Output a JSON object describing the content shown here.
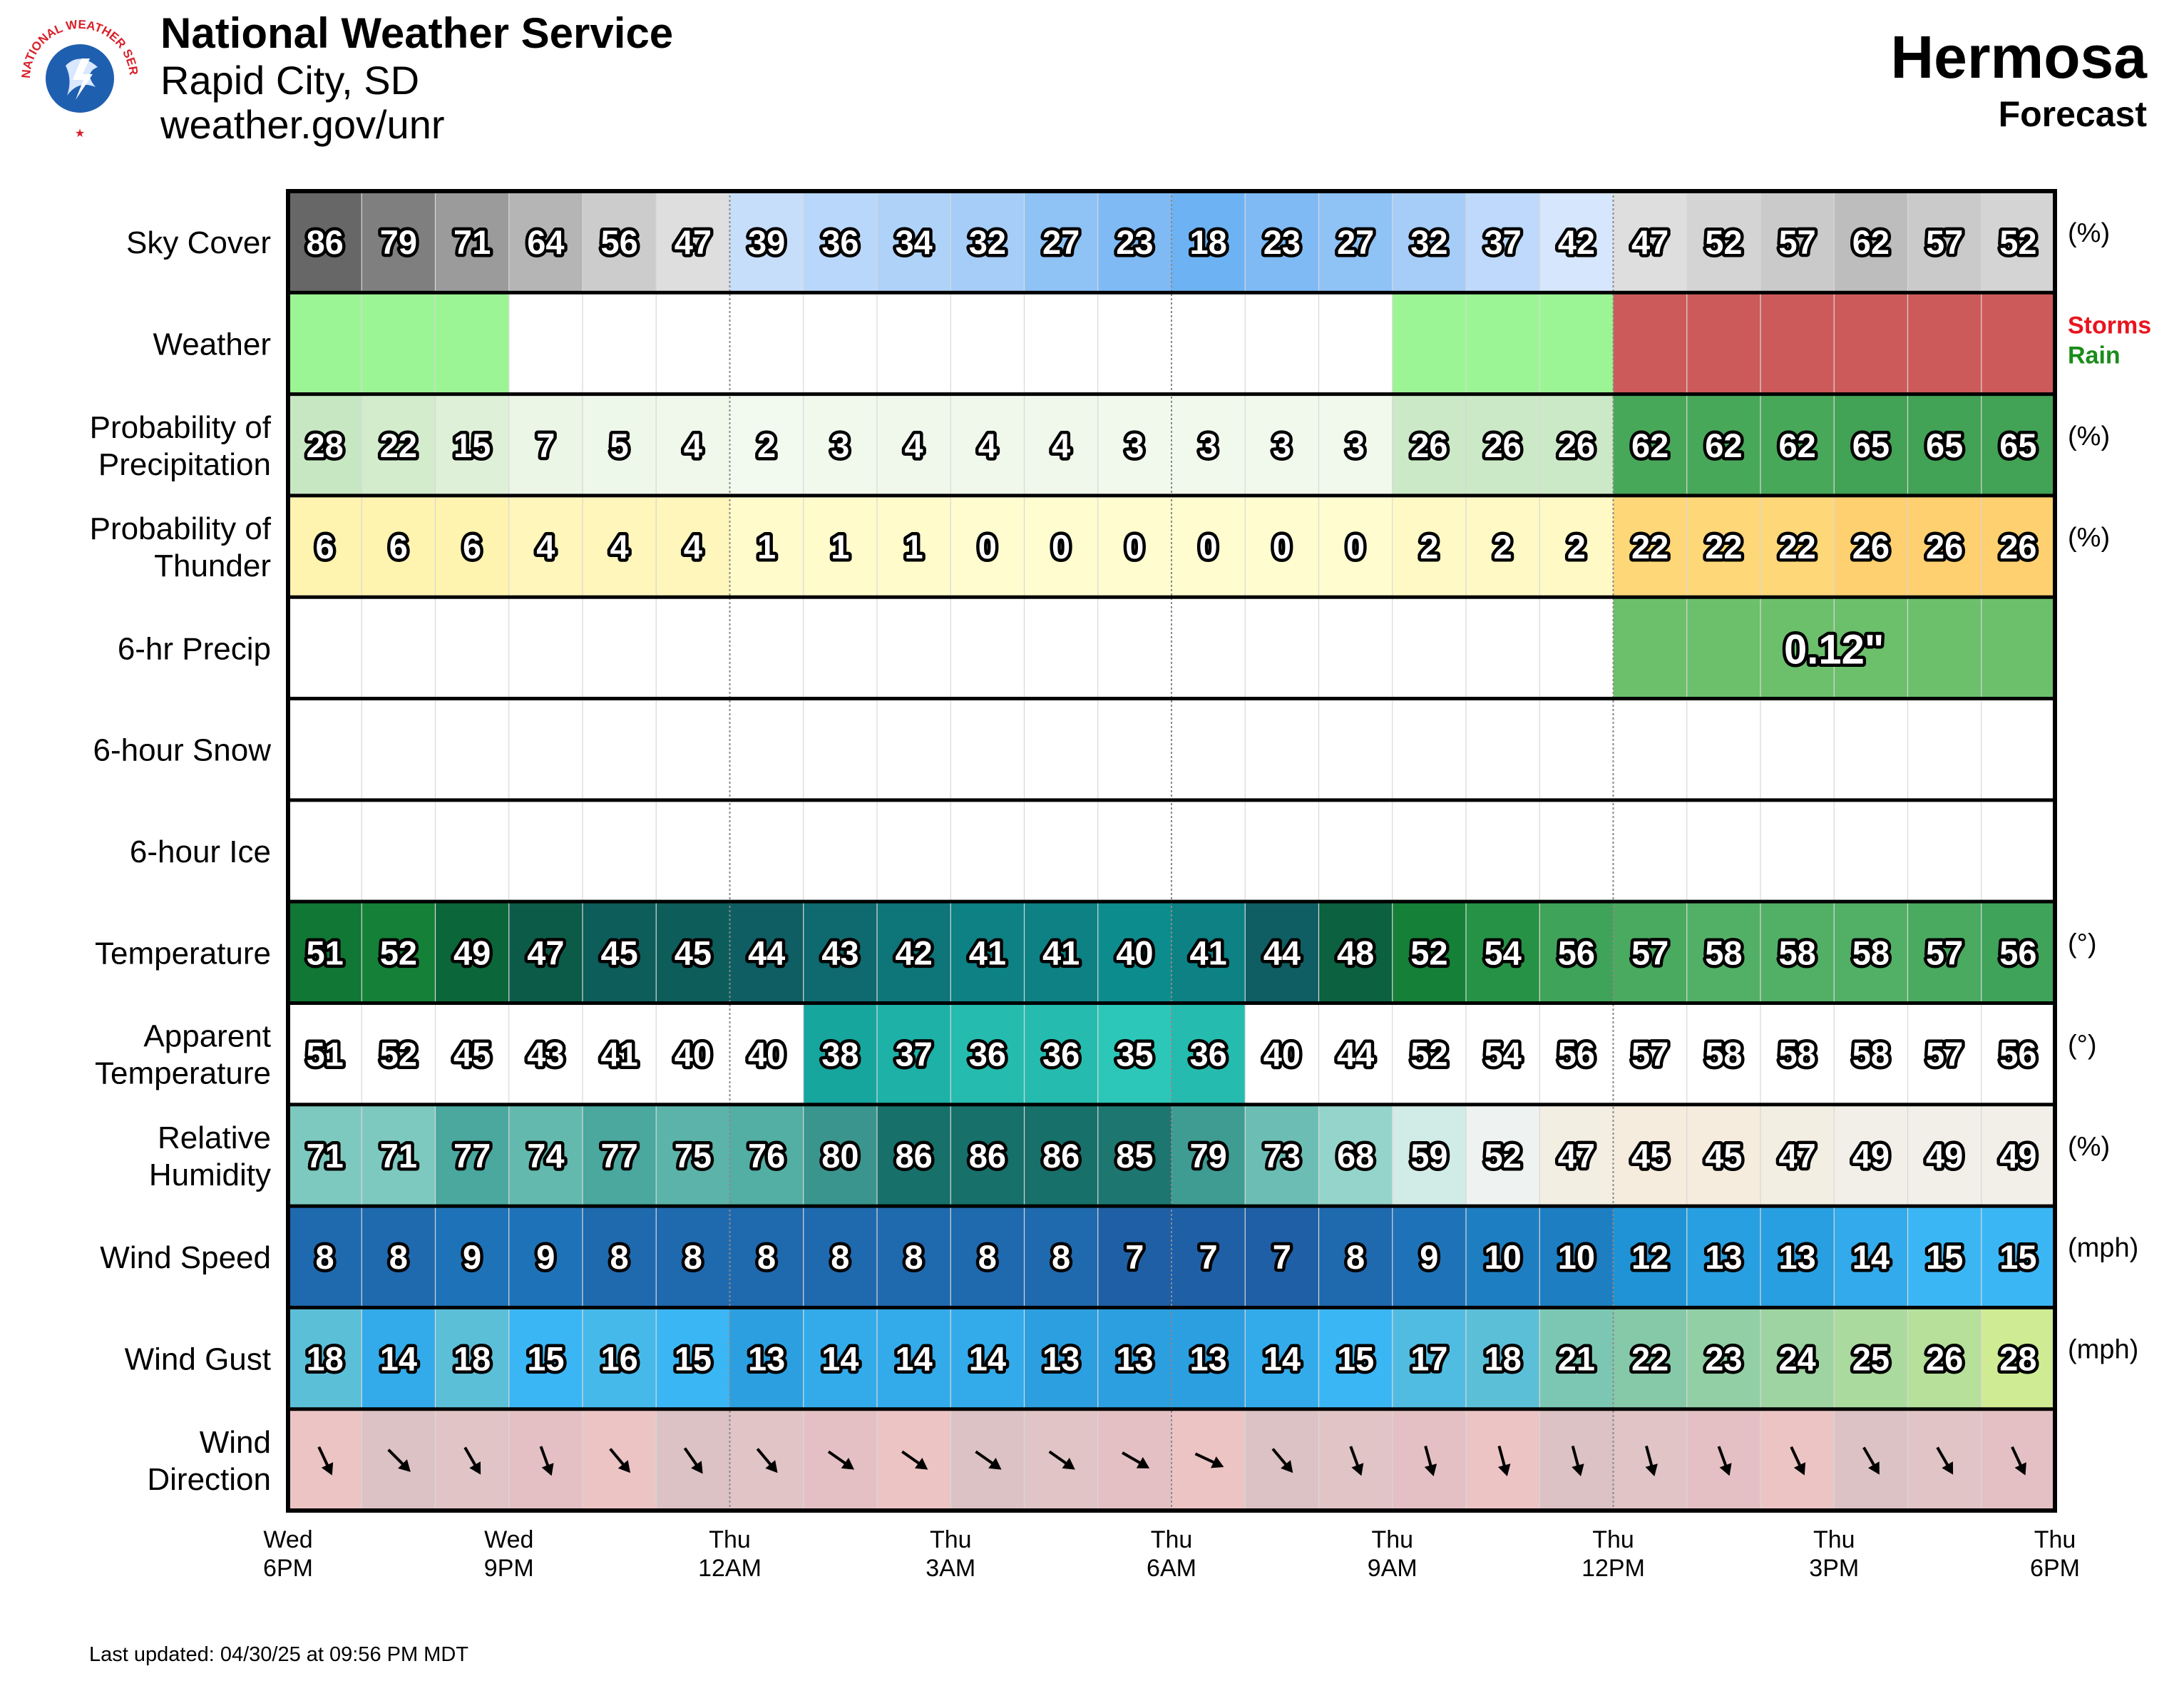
{
  "header": {
    "office": "National Weather Service",
    "location": "Rapid City, SD",
    "url": "weather.gov/unr",
    "logo_text": "NATIONAL WEATHER SERVICE",
    "title": "Hermosa",
    "subtitle": "Forecast"
  },
  "footer": {
    "last_updated": "Last updated: 04/30/25 at 09:56 PM MDT"
  },
  "chart_data": {
    "type": "table",
    "time_labels": [
      {
        "day": "Wed",
        "time": "6PM"
      },
      {
        "day": "Wed",
        "time": "9PM"
      },
      {
        "day": "Thu",
        "time": "12AM"
      },
      {
        "day": "Thu",
        "time": "3AM"
      },
      {
        "day": "Thu",
        "time": "6AM"
      },
      {
        "day": "Thu",
        "time": "9AM"
      },
      {
        "day": "Thu",
        "time": "12PM"
      },
      {
        "day": "Thu",
        "time": "3PM"
      },
      {
        "day": "Thu",
        "time": "6PM"
      }
    ],
    "hours_per_column": 1,
    "rows": [
      {
        "key": "sky",
        "label": [
          "Sky Cover"
        ],
        "unit": "(%)",
        "values": [
          86,
          79,
          71,
          64,
          56,
          47,
          39,
          36,
          34,
          32,
          27,
          23,
          18,
          23,
          27,
          32,
          37,
          42,
          47,
          52,
          57,
          62,
          57,
          52
        ]
      },
      {
        "key": "weather",
        "label": [
          "Weather"
        ],
        "legend": [
          {
            "text": "Storms",
            "color": "#e8141e"
          },
          {
            "text": "Rain",
            "color": "#1a8c1a"
          }
        ],
        "values": [
          "Rain",
          "Rain",
          "Rain",
          "",
          "",
          "",
          "",
          "",
          "",
          "",
          "",
          "",
          "",
          "",
          "",
          "Rain",
          "Rain",
          "Rain",
          "Storms",
          "Storms",
          "Storms",
          "Storms",
          "Storms",
          "Storms"
        ]
      },
      {
        "key": "pop",
        "label": [
          "Probability of",
          "Precipitation"
        ],
        "unit": "(%)",
        "values": [
          28,
          22,
          15,
          7,
          5,
          4,
          2,
          3,
          4,
          4,
          4,
          3,
          3,
          3,
          3,
          26,
          26,
          26,
          62,
          62,
          62,
          65,
          65,
          65
        ]
      },
      {
        "key": "thunder",
        "label": [
          "Probability of",
          "Thunder"
        ],
        "unit": "(%)",
        "values": [
          6,
          6,
          6,
          4,
          4,
          4,
          1,
          1,
          1,
          0,
          0,
          0,
          0,
          0,
          0,
          2,
          2,
          2,
          22,
          22,
          22,
          26,
          26,
          26
        ]
      },
      {
        "key": "qpf",
        "label": [
          "6-hr Precip"
        ],
        "unit": "",
        "periods": [
          {
            "start": 0,
            "end": 6,
            "value": ""
          },
          {
            "start": 6,
            "end": 12,
            "value": ""
          },
          {
            "start": 12,
            "end": 18,
            "value": ""
          },
          {
            "start": 18,
            "end": 24,
            "value": "0.12\""
          }
        ]
      },
      {
        "key": "snow",
        "label": [
          "6-hour Snow"
        ],
        "unit": "",
        "periods": []
      },
      {
        "key": "ice",
        "label": [
          "6-hour Ice"
        ],
        "unit": "",
        "periods": []
      },
      {
        "key": "temp",
        "label": [
          "Temperature"
        ],
        "unit": "(°)",
        "values": [
          51,
          52,
          49,
          47,
          45,
          45,
          44,
          43,
          42,
          41,
          41,
          40,
          41,
          44,
          48,
          52,
          54,
          56,
          57,
          58,
          58,
          58,
          57,
          56
        ]
      },
      {
        "key": "apparent",
        "label": [
          "Apparent",
          "Temperature"
        ],
        "unit": "(°)",
        "values": [
          51,
          52,
          45,
          43,
          41,
          40,
          40,
          38,
          37,
          36,
          36,
          35,
          36,
          40,
          44,
          52,
          54,
          56,
          57,
          58,
          58,
          58,
          57,
          56
        ]
      },
      {
        "key": "rh",
        "label": [
          "Relative",
          "Humidity"
        ],
        "unit": "(%)",
        "values": [
          71,
          71,
          77,
          74,
          77,
          75,
          76,
          80,
          86,
          86,
          86,
          85,
          79,
          73,
          68,
          59,
          52,
          47,
          45,
          45,
          47,
          49,
          49,
          49
        ]
      },
      {
        "key": "wind",
        "label": [
          "Wind Speed"
        ],
        "unit": "(mph)",
        "values": [
          8,
          8,
          9,
          9,
          8,
          8,
          8,
          8,
          8,
          8,
          8,
          7,
          7,
          7,
          8,
          9,
          10,
          10,
          12,
          13,
          13,
          14,
          15,
          15
        ]
      },
      {
        "key": "gust",
        "label": [
          "Wind Gust"
        ],
        "unit": "(mph)",
        "values": [
          18,
          14,
          18,
          15,
          16,
          15,
          13,
          14,
          14,
          14,
          13,
          13,
          13,
          14,
          15,
          17,
          18,
          21,
          22,
          23,
          24,
          25,
          26,
          28
        ]
      },
      {
        "key": "dir",
        "label": [
          "Wind",
          "Direction"
        ],
        "unit": "",
        "values": [
          155,
          135,
          150,
          160,
          140,
          145,
          140,
          125,
          125,
          125,
          125,
          120,
          115,
          140,
          160,
          165,
          165,
          165,
          165,
          160,
          155,
          150,
          150,
          155
        ]
      }
    ]
  }
}
